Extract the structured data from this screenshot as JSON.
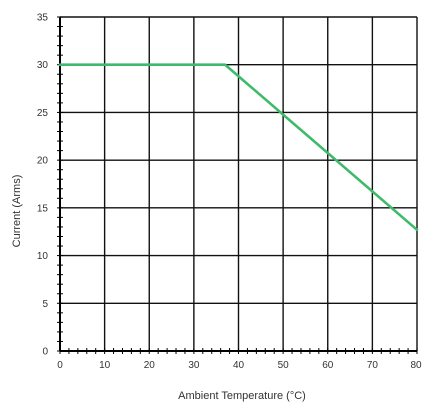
{
  "chart_data": {
    "type": "line",
    "title": "",
    "xlabel": "Ambient Temperature (°C)",
    "ylabel": "Current (Arms)",
    "xlim": [
      0,
      80
    ],
    "ylim": [
      0,
      35
    ],
    "x_ticks": [
      0,
      10,
      20,
      30,
      40,
      50,
      60,
      70,
      80
    ],
    "y_ticks": [
      0,
      5,
      10,
      15,
      20,
      25,
      30,
      35
    ],
    "grid": true,
    "legend": "none",
    "series": [
      {
        "color": "#3dbb6a",
        "x": [
          0,
          37,
          80
        ],
        "y": [
          30,
          30,
          12.7
        ]
      }
    ]
  }
}
